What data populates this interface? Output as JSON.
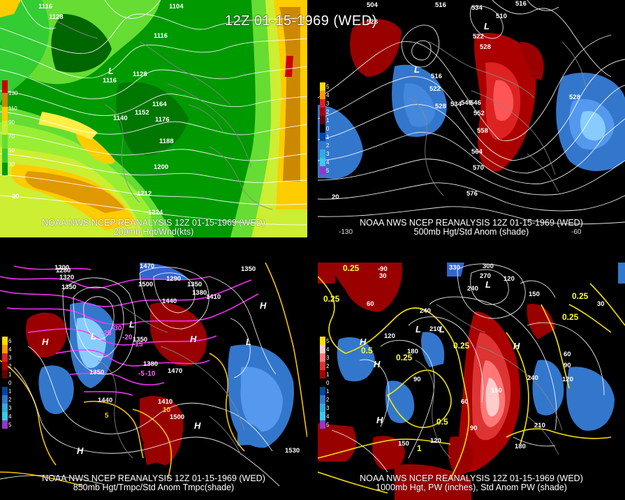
{
  "main_title": "12Z 01-15-1969 (WED)",
  "panels": {
    "p200": {
      "title_line1": "NOAA NWS NCEP REANALYSIS 12Z 01-15-1969 (WED)",
      "title_line2": "200mb Hgt/Wnd(kts)",
      "legend": [
        "130",
        "110",
        "90",
        "70",
        "50",
        "30"
      ],
      "labels": [
        "1116",
        "1128",
        "1104",
        "1116",
        "1116",
        "1128",
        "1164",
        "1152",
        "1140",
        "1176",
        "1188",
        "1200",
        "1212",
        "1224",
        "20"
      ],
      "low_marker": "L"
    },
    "p500": {
      "title_line1": "NOAA NWS NCEP REANALYSIS 12Z 01-15-1969 (WED)",
      "title_line2": "500mb Hgt/Std Anom (shade)",
      "legend": [
        "5",
        "4",
        "3",
        "2",
        "1",
        "0",
        "1",
        "2",
        "3",
        "4",
        "5"
      ],
      "labels": [
        "504",
        "516",
        "534",
        "510",
        "516",
        "528",
        "522",
        "528",
        "516",
        "522",
        "528",
        "534",
        "546",
        "540",
        "552",
        "558",
        "564",
        "570",
        "576",
        "528",
        "20",
        "-130",
        "-60"
      ],
      "low_markers": [
        "L",
        "L"
      ]
    },
    "p850": {
      "title_line1": "NOAA NWS NCEP REANALYSIS 12Z 01-15-1969 (WED)",
      "title_line2": "850mb Hgt/Tmpc/Std Anom Tmpc(shade)",
      "legend": [
        "6",
        "4",
        "3",
        "2",
        "1",
        "0",
        "1",
        "2",
        "3",
        "4",
        "5"
      ],
      "labels": [
        "1200",
        "1280",
        "1320",
        "1350",
        "1470",
        "1500",
        "1290",
        "1350",
        "1380",
        "1410",
        "1440",
        "1350",
        "1380",
        "1470",
        "1440",
        "1410",
        "1500",
        "1530",
        "1350",
        "1350"
      ],
      "temp_labels": [
        "-30",
        "-25",
        "-20",
        "-15",
        "-10",
        "-5",
        "5",
        "10"
      ],
      "markers": [
        "H",
        "L",
        "L",
        "H",
        "L",
        "H",
        "H",
        "H"
      ]
    },
    "p1000": {
      "title_line1": "NOAA NWS NCEP REANALYSIS 12Z 01-15-1969 (WED)",
      "title_line2": "1000mb Hgt, PW (inches), Std Anom PW (shade)",
      "legend": [
        "5",
        "4",
        "3",
        "2",
        "1",
        "0",
        "1",
        "2",
        "3",
        "4",
        "5"
      ],
      "labels": [
        "-90",
        "330",
        "300",
        "270",
        "240",
        "120",
        "150",
        "30",
        "60",
        "240",
        "210",
        "120",
        "180",
        "240",
        "60",
        "90",
        "120",
        "150",
        "90",
        "60",
        "90",
        "120",
        "150",
        "180",
        "210",
        "30"
      ],
      "pw_labels": [
        "0.25",
        "0.25",
        "0.5",
        "0.25",
        "0.25",
        "0.25",
        "0.5",
        "1",
        "0.25"
      ],
      "markers": [
        "L",
        "H",
        "H",
        "L",
        "L",
        "H",
        "H"
      ]
    }
  }
}
